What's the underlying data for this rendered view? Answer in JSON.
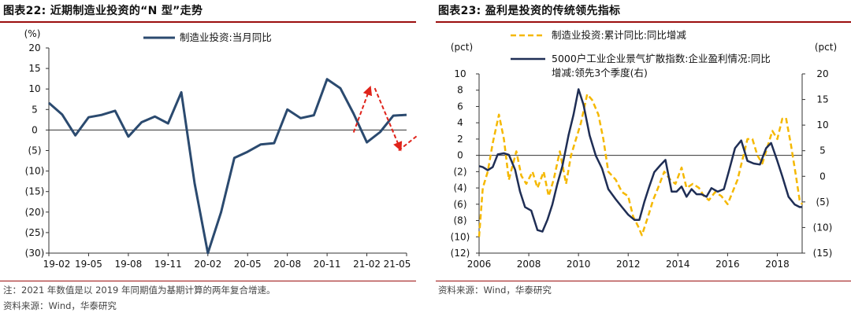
{
  "left": {
    "title": "图表22:  近期制造业投资的“N 型”走势",
    "note": "注：2021 年数值是以 2019 年同期值为基期计算的两年复合增速。",
    "source": "资料来源：Wind，华泰研究"
  },
  "right": {
    "title": "图表23:  盈利是投资的传统领先指标",
    "source": "资料来源：Wind，华泰研究"
  },
  "chart_data": [
    {
      "type": "line",
      "unit_label": "(%)",
      "ylim": [
        -30,
        20
      ],
      "yticks": [
        20,
        15,
        10,
        5,
        0,
        -5,
        -10,
        -15,
        -20,
        -25,
        -30
      ],
      "ytick_labels": [
        "20",
        "15",
        "10",
        "5",
        "0",
        "(5)",
        "(10)",
        "(15)",
        "(20)",
        "(25)",
        "(30)"
      ],
      "xtick_labels": [
        "19-02",
        "19-05",
        "19-08",
        "19-11",
        "20-02",
        "20-05",
        "20-08",
        "20-11",
        "21-02",
        "21-05"
      ],
      "series": [
        {
          "name": "制造业投资:当月同比",
          "color": "#2b4a6f",
          "values": [
            6.6,
            3.8,
            -1.3,
            3.1,
            3.7,
            4.7,
            -1.6,
            1.9,
            3.3,
            1.6,
            9.2,
            -13.0,
            -30.0,
            -20.0,
            -6.8,
            -5.3,
            -3.5,
            -3.2,
            5.0,
            2.9,
            3.6,
            12.4,
            10.2,
            4.0,
            -3.0,
            -0.5,
            3.5,
            3.7
          ]
        }
      ],
      "annotations": [
        {
          "type": "dashed-arrow",
          "color": "#e0231a",
          "from": [
            23,
            -0.6
          ],
          "to": [
            24.3,
            10.8
          ]
        },
        {
          "type": "dashed-arrow",
          "color": "#e0231a",
          "from": [
            24.6,
            10.2
          ],
          "to": [
            26.6,
            -5.2
          ]
        },
        {
          "type": "dashed-arrow",
          "color": "#e0231a",
          "from": [
            26.4,
            -5.0
          ],
          "to": [
            29.5,
            3.0
          ]
        }
      ]
    },
    {
      "type": "line",
      "left_unit": "(pct)",
      "right_unit": "(pct)",
      "ylim_left": [
        -12,
        10
      ],
      "ylim_right": [
        -15,
        20
      ],
      "yticks_left": [
        10,
        8,
        6,
        4,
        2,
        0,
        -2,
        -4,
        -6,
        -8,
        -10,
        -12
      ],
      "ytick_labels_left": [
        "10",
        "8",
        "6",
        "4",
        "2",
        "0",
        "(2)",
        "(4)",
        "(6)",
        "(8)",
        "(10)",
        "(12)"
      ],
      "yticks_right": [
        20,
        15,
        10,
        5,
        0,
        -5,
        -10,
        -15
      ],
      "ytick_labels_right": [
        "20",
        "15",
        "10",
        "5",
        "0",
        "(5)",
        "(10)",
        "(15)"
      ],
      "xlim": [
        2006,
        2019
      ],
      "xticks": [
        2006,
        2008,
        2010,
        2012,
        2014,
        2016,
        2018
      ],
      "xtick_labels": [
        "2006",
        "2008",
        "2010",
        "2012",
        "2014",
        "2016",
        "2018"
      ],
      "series": [
        {
          "name": "制造业投资:累计同比:同比增减",
          "axis": "left",
          "color": "#f5b800",
          "dashed": true,
          "x": [
            2006.0,
            2006.15,
            2006.35,
            2006.55,
            2006.8,
            2007.0,
            2007.2,
            2007.5,
            2007.7,
            2007.9,
            2008.15,
            2008.35,
            2008.6,
            2008.8,
            2009.0,
            2009.25,
            2009.5,
            2009.7,
            2009.9,
            2010.1,
            2010.35,
            2010.55,
            2010.8,
            2011.0,
            2011.2,
            2011.5,
            2011.75,
            2012.0,
            2012.2,
            2012.4,
            2012.55,
            2012.8,
            2013.0,
            2013.2,
            2013.45,
            2013.7,
            2013.9,
            2014.15,
            2014.35,
            2014.6,
            2014.85,
            2015.05,
            2015.25,
            2015.5,
            2015.75,
            2016.0,
            2016.2,
            2016.4,
            2016.6,
            2016.8,
            2017.0,
            2017.2,
            2017.4,
            2017.6,
            2017.8,
            2018.0,
            2018.2,
            2018.35,
            2018.55,
            2018.75,
            2018.9,
            2019.0
          ],
          "y": [
            -10,
            -4,
            -2,
            1.5,
            5,
            2,
            -3,
            0.5,
            -2.5,
            -3.5,
            -2,
            -4,
            -2,
            -5,
            -3,
            0.5,
            -3.5,
            0,
            2,
            4,
            7.5,
            6.8,
            5,
            2,
            -2,
            -3,
            -4.5,
            -5,
            -7.5,
            -8.7,
            -9.8,
            -7.5,
            -5.5,
            -4,
            -2,
            -3,
            -3.5,
            -1.5,
            -4,
            -3.5,
            -4,
            -5,
            -5.5,
            -4.5,
            -5,
            -6,
            -4.5,
            -3,
            -0.5,
            2,
            2,
            0,
            -1,
            1,
            3,
            2,
            4.5,
            4.6,
            1.3,
            -2.5,
            -5.5,
            -6
          ]
        },
        {
          "name": "5000户工业企业景气扩散指数:企业盈利情况:同比增减:领先3个季度(右)",
          "axis": "right",
          "color": "#1f2e55",
          "dashed": false,
          "x": [
            2006.0,
            2006.15,
            2006.35,
            2006.55,
            2006.75,
            2007.0,
            2007.2,
            2007.45,
            2007.65,
            2007.85,
            2008.1,
            2008.35,
            2008.55,
            2008.75,
            2008.95,
            2009.15,
            2009.35,
            2009.6,
            2009.8,
            2010.0,
            2010.2,
            2010.45,
            2010.7,
            2010.95,
            2011.2,
            2011.5,
            2011.75,
            2012.0,
            2012.25,
            2012.45,
            2012.65,
            2012.85,
            2013.05,
            2013.3,
            2013.5,
            2013.75,
            2013.95,
            2014.15,
            2014.35,
            2014.55,
            2014.75,
            2014.95,
            2015.15,
            2015.35,
            2015.6,
            2015.85,
            2016.05,
            2016.3,
            2016.55,
            2016.8,
            2017.05,
            2017.3,
            2017.55,
            2017.75,
            2018.0,
            2018.2,
            2018.45,
            2018.7,
            2018.9,
            2019.0
          ],
          "y": [
            2,
            1.8,
            1.2,
            1.8,
            4.3,
            4.5,
            4.2,
            1.3,
            -3,
            -6,
            -6.7,
            -10.5,
            -10.8,
            -8.5,
            -5.5,
            -1.5,
            2,
            8,
            12,
            17,
            14,
            8,
            4,
            1.5,
            -2.5,
            -4.5,
            -6,
            -7.5,
            -8.5,
            -8.5,
            -5,
            -2,
            0.8,
            2.2,
            3.2,
            -3,
            -3,
            -2,
            -4,
            -2.5,
            -3.5,
            -3.5,
            -4,
            -2.3,
            -3,
            -2.5,
            1,
            5.5,
            7,
            3,
            2.5,
            2.3,
            5.5,
            6.5,
            3,
            0,
            -4,
            -5.5,
            -6,
            -6
          ]
        }
      ]
    }
  ]
}
